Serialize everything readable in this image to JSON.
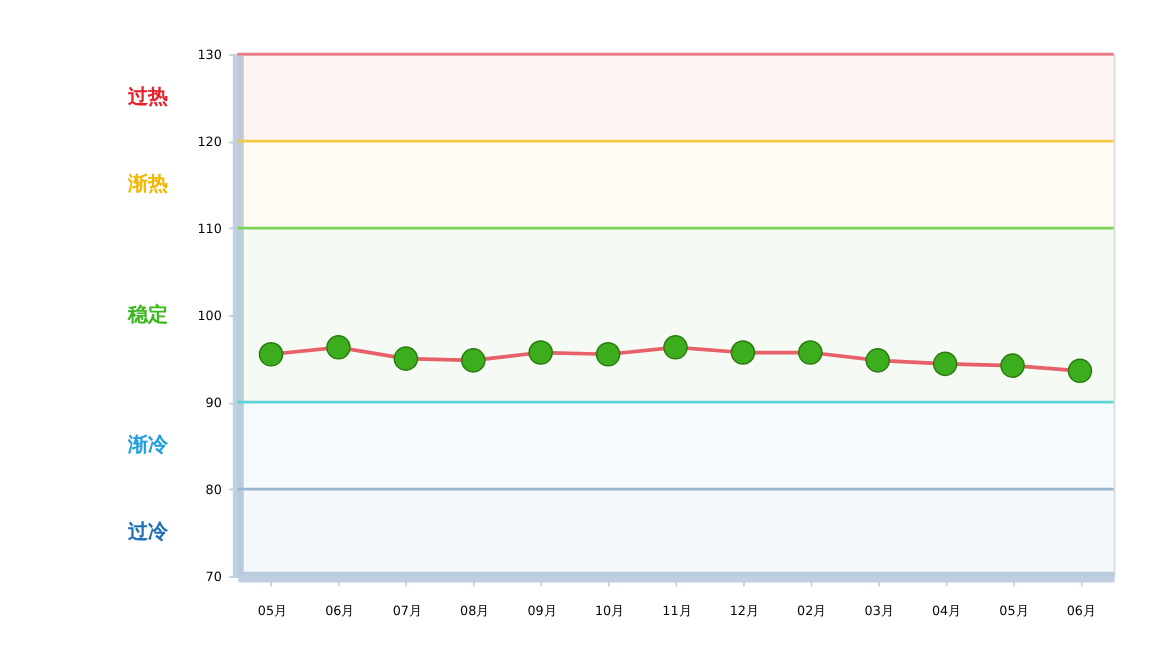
{
  "chart_data": {
    "type": "line",
    "categories": [
      "05月",
      "06月",
      "07月",
      "08月",
      "09月",
      "10月",
      "11月",
      "12月",
      "02月",
      "03月",
      "04月",
      "05月",
      "06月"
    ],
    "series": [
      {
        "color": "#e8606a",
        "values": [
          95.5,
          96.3,
          95.0,
          94.8,
          95.7,
          95.5,
          96.3,
          95.7,
          95.7,
          94.8,
          94.4,
          94.2,
          93.6
        ]
      }
    ],
    "marker": "circle",
    "line_style": "solid",
    "grid": false,
    "ylim": [
      70,
      130
    ],
    "yticks": [
      70,
      80,
      90,
      100,
      110,
      120,
      130
    ],
    "ref_lines": [
      {
        "axis": "y",
        "value": 130,
        "color": "#f07a84"
      },
      {
        "axis": "y",
        "value": 120,
        "color": "#f5c842"
      },
      {
        "axis": "y",
        "value": 110,
        "color": "#7cd35a"
      },
      {
        "axis": "y",
        "value": 90,
        "color": "#5fd3d8"
      },
      {
        "axis": "y",
        "value": 80,
        "color": "#9ab8d0"
      }
    ],
    "bands": [
      {
        "axis": "y",
        "from": 120,
        "to": 130,
        "label": "过热",
        "color": "#e8202a"
      },
      {
        "axis": "y",
        "from": 110,
        "to": 120,
        "label": "渐热",
        "color": "#f0b800"
      },
      {
        "axis": "y",
        "from": 90,
        "to": 110,
        "label": "稳定",
        "color": "#3cb81e"
      },
      {
        "axis": "y",
        "from": 80,
        "to": 90,
        "label": "渐冷",
        "color": "#1ea0e0"
      },
      {
        "axis": "y",
        "from": 70,
        "to": 80,
        "label": "过冷",
        "color": "#1e70b8"
      }
    ]
  }
}
